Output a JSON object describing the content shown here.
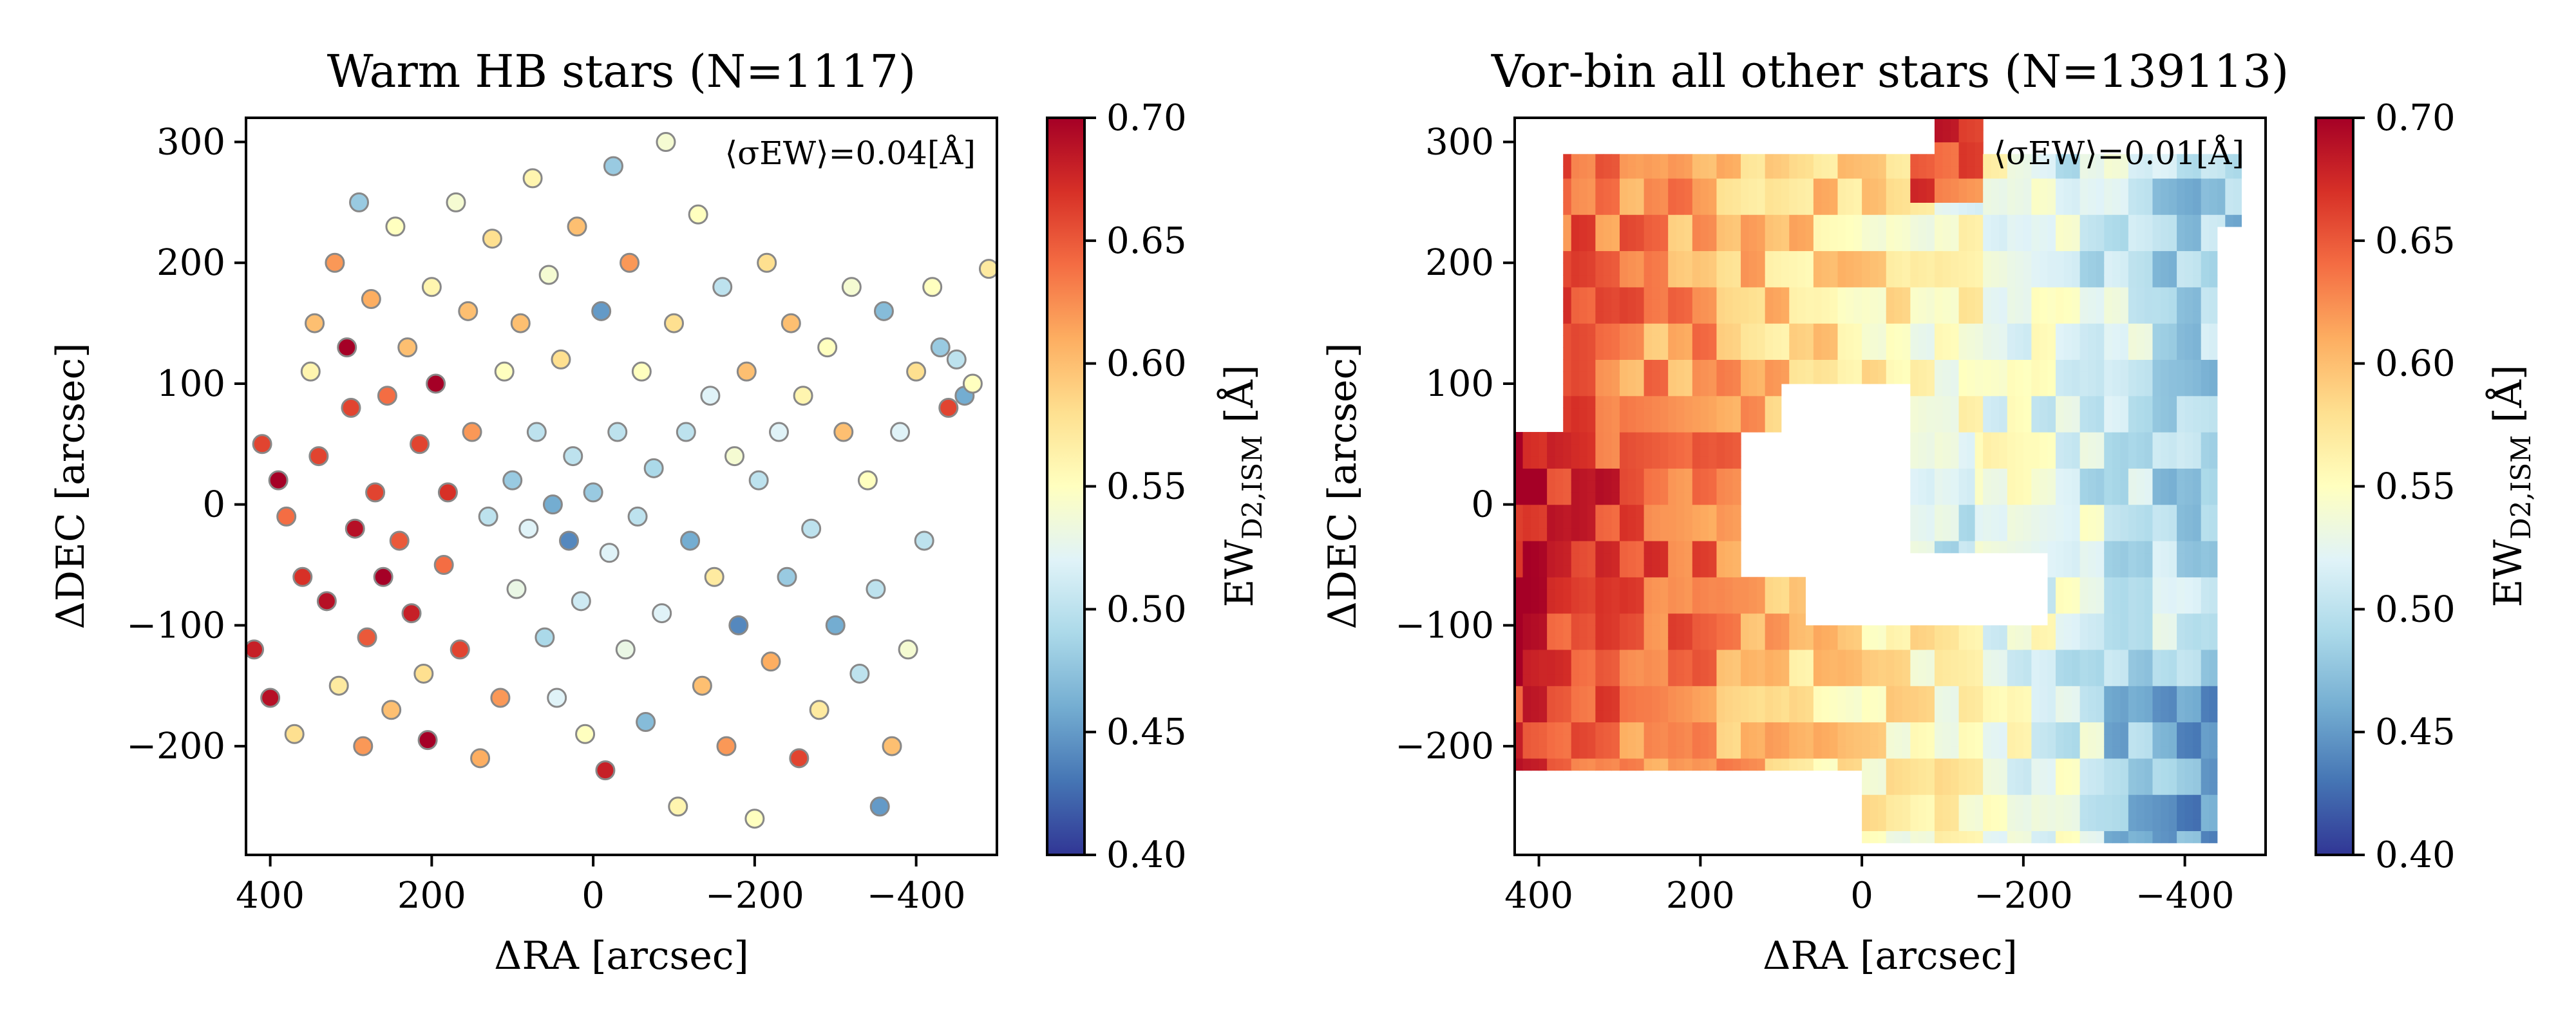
{
  "figure": {
    "background": "#ffffff"
  },
  "chart_data": [
    {
      "type": "scatter",
      "title": "Warm HB stars (N=1117)",
      "xlabel": "ΔRA [arcsec]",
      "ylabel": "ΔDEC [arcsec]",
      "annotation": "⟨σEW⟩=0.04[Å]",
      "xlim": [
        430,
        -500
      ],
      "ylim": [
        -290,
        320
      ],
      "xticks": [
        400,
        200,
        0,
        -200,
        -400
      ],
      "xtick_labels": [
        "400",
        "200",
        "0",
        "−200",
        "−400"
      ],
      "yticks": [
        300,
        200,
        100,
        0,
        -100,
        -200
      ],
      "ytick_labels": [
        "300",
        "200",
        "100",
        "0",
        "−100",
        "−200"
      ],
      "marker": {
        "shape": "circle",
        "edgecolor": "#888888"
      },
      "colorbar": {
        "label": "EW<sub>D2,ISM</sub> [Å]",
        "range": [
          0.4,
          0.7
        ],
        "ticks": [
          "0.70",
          "0.65",
          "0.60",
          "0.55",
          "0.50",
          "0.45",
          "0.40"
        ],
        "cmap": "RdYlBu_r"
      },
      "points_note": "approximate sample of the plotted stars [x, y, EW]",
      "points": [
        [
          420,
          -120,
          0.68
        ],
        [
          410,
          50,
          0.66
        ],
        [
          400,
          -160,
          0.69
        ],
        [
          390,
          20,
          0.7
        ],
        [
          380,
          -10,
          0.64
        ],
        [
          370,
          -190,
          0.58
        ],
        [
          360,
          -60,
          0.67
        ],
        [
          350,
          110,
          0.56
        ],
        [
          345,
          150,
          0.6
        ],
        [
          340,
          40,
          0.66
        ],
        [
          330,
          -80,
          0.69
        ],
        [
          320,
          200,
          0.62
        ],
        [
          315,
          -150,
          0.57
        ],
        [
          305,
          130,
          0.7
        ],
        [
          300,
          80,
          0.66
        ],
        [
          295,
          -20,
          0.69
        ],
        [
          290,
          250,
          0.48
        ],
        [
          285,
          -200,
          0.62
        ],
        [
          280,
          -110,
          0.65
        ],
        [
          275,
          170,
          0.61
        ],
        [
          270,
          10,
          0.66
        ],
        [
          260,
          -60,
          0.7
        ],
        [
          255,
          90,
          0.64
        ],
        [
          250,
          -170,
          0.6
        ],
        [
          245,
          230,
          0.55
        ],
        [
          240,
          -30,
          0.65
        ],
        [
          230,
          130,
          0.6
        ],
        [
          225,
          -90,
          0.68
        ],
        [
          215,
          50,
          0.66
        ],
        [
          210,
          -140,
          0.58
        ],
        [
          205,
          -195,
          0.7
        ],
        [
          200,
          180,
          0.56
        ],
        [
          195,
          100,
          0.7
        ],
        [
          185,
          -50,
          0.64
        ],
        [
          180,
          10,
          0.67
        ],
        [
          170,
          250,
          0.54
        ],
        [
          165,
          -120,
          0.66
        ],
        [
          155,
          160,
          0.6
        ],
        [
          150,
          60,
          0.62
        ],
        [
          140,
          -210,
          0.61
        ],
        [
          130,
          -10,
          0.5
        ],
        [
          125,
          220,
          0.58
        ],
        [
          115,
          -160,
          0.62
        ],
        [
          110,
          110,
          0.55
        ],
        [
          100,
          20,
          0.48
        ],
        [
          95,
          -70,
          0.53
        ],
        [
          90,
          150,
          0.6
        ],
        [
          80,
          -20,
          0.52
        ],
        [
          75,
          270,
          0.56
        ],
        [
          70,
          60,
          0.5
        ],
        [
          60,
          -110,
          0.49
        ],
        [
          55,
          190,
          0.54
        ],
        [
          50,
          0,
          0.46
        ],
        [
          45,
          -160,
          0.52
        ],
        [
          40,
          120,
          0.58
        ],
        [
          30,
          -30,
          0.44
        ],
        [
          25,
          40,
          0.5
        ],
        [
          20,
          230,
          0.6
        ],
        [
          15,
          -80,
          0.51
        ],
        [
          10,
          -190,
          0.55
        ],
        [
          0,
          10,
          0.48
        ],
        [
          -10,
          160,
          0.45
        ],
        [
          -15,
          -220,
          0.68
        ],
        [
          -20,
          -40,
          0.52
        ],
        [
          -25,
          280,
          0.48
        ],
        [
          -30,
          60,
          0.5
        ],
        [
          -40,
          -120,
          0.53
        ],
        [
          -45,
          200,
          0.62
        ],
        [
          -55,
          -10,
          0.5
        ],
        [
          -60,
          110,
          0.55
        ],
        [
          -65,
          -180,
          0.47
        ],
        [
          -75,
          30,
          0.49
        ],
        [
          -85,
          -90,
          0.52
        ],
        [
          -90,
          300,
          0.54
        ],
        [
          -100,
          150,
          0.58
        ],
        [
          -105,
          -250,
          0.56
        ],
        [
          -115,
          60,
          0.5
        ],
        [
          -120,
          -30,
          0.46
        ],
        [
          -130,
          240,
          0.55
        ],
        [
          -135,
          -150,
          0.6
        ],
        [
          -145,
          90,
          0.52
        ],
        [
          -150,
          -60,
          0.57
        ],
        [
          -160,
          180,
          0.5
        ],
        [
          -165,
          -200,
          0.62
        ],
        [
          -175,
          40,
          0.54
        ],
        [
          -180,
          -100,
          0.44
        ],
        [
          -190,
          110,
          0.6
        ],
        [
          -200,
          -260,
          0.55
        ],
        [
          -205,
          20,
          0.5
        ],
        [
          -215,
          200,
          0.58
        ],
        [
          -220,
          -130,
          0.61
        ],
        [
          -230,
          60,
          0.52
        ],
        [
          -240,
          -60,
          0.48
        ],
        [
          -245,
          150,
          0.6
        ],
        [
          -255,
          -210,
          0.66
        ],
        [
          -260,
          90,
          0.56
        ],
        [
          -270,
          -20,
          0.5
        ],
        [
          -280,
          -170,
          0.57
        ],
        [
          -290,
          130,
          0.55
        ],
        [
          -300,
          -100,
          0.46
        ],
        [
          -310,
          60,
          0.6
        ],
        [
          -320,
          180,
          0.54
        ],
        [
          -330,
          -140,
          0.5
        ],
        [
          -340,
          20,
          0.55
        ],
        [
          -350,
          -70,
          0.5
        ],
        [
          -355,
          -250,
          0.45
        ],
        [
          -360,
          160,
          0.47
        ],
        [
          -370,
          -200,
          0.6
        ],
        [
          -380,
          60,
          0.52
        ],
        [
          -390,
          -120,
          0.54
        ],
        [
          -400,
          110,
          0.58
        ],
        [
          -410,
          -30,
          0.5
        ],
        [
          -420,
          180,
          0.55
        ],
        [
          -430,
          130,
          0.48
        ],
        [
          -440,
          80,
          0.66
        ],
        [
          -450,
          120,
          0.5
        ],
        [
          -460,
          90,
          0.46
        ],
        [
          -470,
          100,
          0.55
        ],
        [
          -490,
          195,
          0.57
        ]
      ]
    },
    {
      "type": "heatmap",
      "title": "Vor-bin all other stars (N=139113)",
      "xlabel": "ΔRA [arcsec]",
      "ylabel": "ΔDEC [arcsec]",
      "annotation": "⟨σEW⟩=0.01[Å]",
      "xlim": [
        430,
        -500
      ],
      "ylim": [
        -290,
        320
      ],
      "xticks": [
        400,
        200,
        0,
        -200,
        -400
      ],
      "xtick_labels": [
        "400",
        "200",
        "0",
        "−200",
        "−400"
      ],
      "yticks": [
        300,
        200,
        100,
        0,
        -100,
        -200
      ],
      "ytick_labels": [
        "300",
        "200",
        "100",
        "0",
        "−100",
        "−200"
      ],
      "colorbar": {
        "label": "EW<sub>D2,ISM</sub> [Å]",
        "range": [
          0.4,
          0.7
        ],
        "ticks": [
          "0.70",
          "0.65",
          "0.60",
          "0.55",
          "0.50",
          "0.45",
          "0.40"
        ],
        "cmap": "RdYlBu_r"
      },
      "coverage_note": "rectangular data regions in data units [x_left, x_right, y_bottom, y_top]",
      "coverage": [
        [
          430,
          50,
          -220,
          60
        ],
        [
          370,
          50,
          60,
          290
        ],
        [
          50,
          -470,
          230,
          290
        ],
        [
          50,
          -440,
          -80,
          230
        ],
        [
          50,
          -440,
          -220,
          -80
        ],
        [
          0,
          -440,
          -280,
          -220
        ],
        [
          -95,
          -145,
          290,
          315
        ]
      ],
      "holes": [
        [
          100,
          -60,
          50,
          100
        ],
        [
          145,
          -55,
          -60,
          60
        ],
        [
          70,
          -230,
          -100,
          -60
        ],
        [
          -60,
          -230,
          -60,
          -40
        ]
      ],
      "trend_note": "EW is high (red, ~0.65-0.70) on the east side (positive RA) and low (blue, ~0.45-0.50) on the west side, with a red streak near RA -100 at DEC 300."
    }
  ]
}
